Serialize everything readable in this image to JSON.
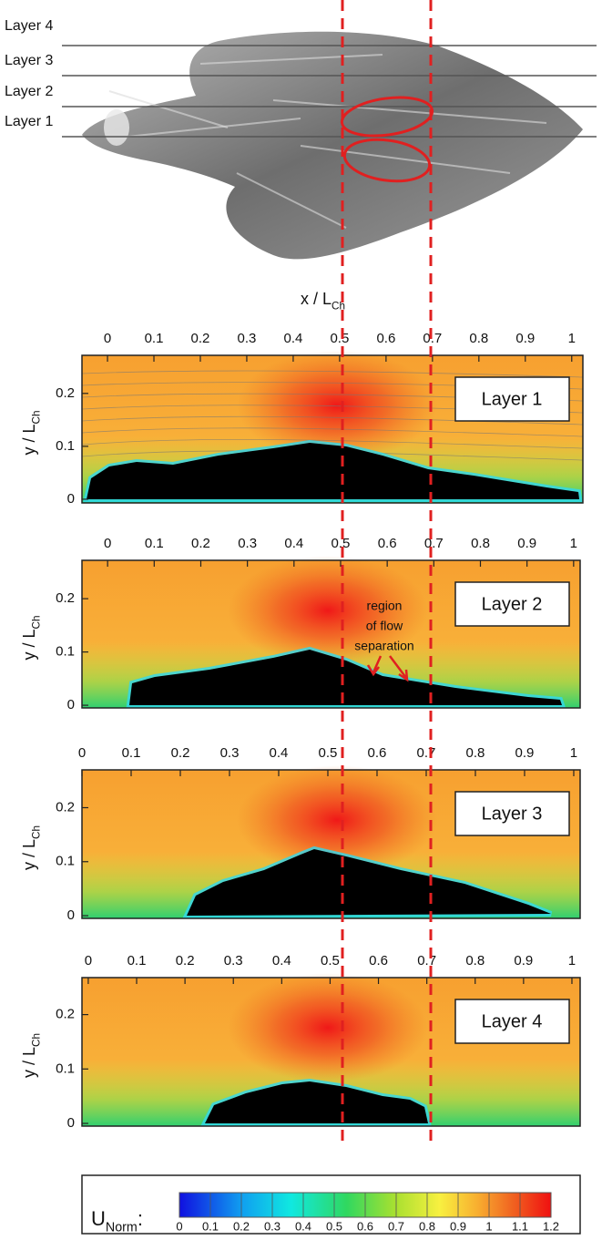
{
  "figure": {
    "layer_lines": [
      "Layer 4",
      "Layer 3",
      "Layer 2",
      "Layer 1"
    ],
    "x_label": "x / L",
    "x_label_sub": "Ch",
    "annotation": [
      "region",
      "of flow",
      "separation"
    ],
    "colorbar": {
      "label": "U",
      "label_sub": "Norm",
      "label_end": ":",
      "lim": [
        0,
        1.2
      ],
      "ticks": [
        0,
        0.1,
        0.2,
        0.3,
        0.4,
        0.5,
        0.6,
        0.7,
        0.8,
        0.9,
        1,
        1.1,
        1.2
      ]
    }
  },
  "chart_data": [
    {
      "type": "heatmap",
      "title": "Layer 1",
      "ylabel": "y / L",
      "ylabel_sub": "Ch",
      "xlim": [
        -0.055,
        1.024
      ],
      "xticks": [
        0,
        0.1,
        0.2,
        0.3,
        0.4,
        0.5,
        0.6,
        0.7,
        0.8,
        0.9,
        1
      ],
      "ylim": [
        -0.007,
        0.272
      ],
      "yticks": [
        0,
        0.1,
        0.2
      ]
    },
    {
      "type": "heatmap",
      "title": "Layer 2",
      "ylabel": "y / L",
      "ylabel_sub": "Ch",
      "xlim": [
        -0.055,
        1.014
      ],
      "xticks": [
        0,
        0.1,
        0.2,
        0.3,
        0.4,
        0.5,
        0.6,
        0.7,
        0.8,
        0.9,
        1
      ],
      "ylim": [
        -0.005,
        0.272
      ],
      "yticks": [
        0,
        0.1,
        0.2
      ]
    },
    {
      "type": "heatmap",
      "title": "Layer 3",
      "ylabel": "y / L",
      "ylabel_sub": "Ch",
      "xlim": [
        0,
        1.013
      ],
      "xticks": [
        0,
        0.1,
        0.2,
        0.3,
        0.4,
        0.5,
        0.6,
        0.7,
        0.8,
        0.9,
        1
      ],
      "ylim": [
        -0.005,
        0.27
      ],
      "yticks": [
        0,
        0.1,
        0.2
      ]
    },
    {
      "type": "heatmap",
      "title": "Layer 4",
      "ylabel": "y / L",
      "ylabel_sub": "Ch",
      "xlim": [
        -0.013,
        1.017
      ],
      "xticks": [
        0,
        0.1,
        0.2,
        0.3,
        0.4,
        0.5,
        0.6,
        0.7,
        0.8,
        0.9,
        1
      ],
      "ylim": [
        -0.005,
        0.268
      ],
      "yticks": [
        0,
        0.1,
        0.2
      ]
    }
  ]
}
